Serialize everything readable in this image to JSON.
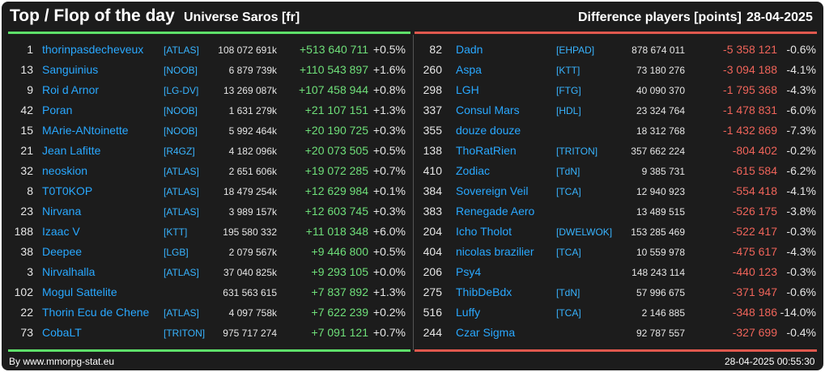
{
  "header": {
    "title": "Top / Flop of the day",
    "universe": "Universe Saros [fr]",
    "difference": "Difference players [points]",
    "date": "28-04-2025"
  },
  "colors": {
    "positive": "#6fe07a",
    "negative": "#f0645a",
    "link": "#29a8ff",
    "background": "#1c1c1c"
  },
  "top": [
    {
      "rank": "1",
      "name": "thorinpasdecheveux",
      "ally": "[ATLAS]",
      "points": "108 072 691k",
      "diff": "+513 640 711",
      "pct": "+0.5%"
    },
    {
      "rank": "13",
      "name": "Sanguinius",
      "ally": "[NOOB]",
      "points": "6 879 739k",
      "diff": "+110 543 897",
      "pct": "+1.6%"
    },
    {
      "rank": "9",
      "name": "Roi d Arnor",
      "ally": "[LG-DV]",
      "points": "13 269 087k",
      "diff": "+107 458 944",
      "pct": "+0.8%"
    },
    {
      "rank": "42",
      "name": "Poran",
      "ally": "[NOOB]",
      "points": "1 631 279k",
      "diff": "+21 107 151",
      "pct": "+1.3%"
    },
    {
      "rank": "15",
      "name": "MArie-ANtoinette",
      "ally": "[NOOB]",
      "points": "5 992 464k",
      "diff": "+20 190 725",
      "pct": "+0.3%"
    },
    {
      "rank": "21",
      "name": "Jean Lafitte",
      "ally": "[R4GZ]",
      "points": "4 182 096k",
      "diff": "+20 073 505",
      "pct": "+0.5%"
    },
    {
      "rank": "32",
      "name": "neoskion",
      "ally": "[ATLAS]",
      "points": "2 651 606k",
      "diff": "+19 072 285",
      "pct": "+0.7%"
    },
    {
      "rank": "8",
      "name": "T0T0KOP",
      "ally": "[ATLAS]",
      "points": "18 479 254k",
      "diff": "+12 629 984",
      "pct": "+0.1%"
    },
    {
      "rank": "23",
      "name": "Nirvana",
      "ally": "[ATLAS]",
      "points": "3 989 157k",
      "diff": "+12 603 745",
      "pct": "+0.3%"
    },
    {
      "rank": "188",
      "name": "Izaac V",
      "ally": "[KTT]",
      "points": "195 580 332",
      "diff": "+11 018 348",
      "pct": "+6.0%"
    },
    {
      "rank": "38",
      "name": "Deepee",
      "ally": "[LGB]",
      "points": "2 079 567k",
      "diff": "+9 446 800",
      "pct": "+0.5%"
    },
    {
      "rank": "3",
      "name": "Nirvalhalla",
      "ally": "[ATLAS]",
      "points": "37 040 825k",
      "diff": "+9 293 105",
      "pct": "+0.0%"
    },
    {
      "rank": "102",
      "name": "Mogul Sattelite",
      "ally": "",
      "points": "631 563 615",
      "diff": "+7 837 892",
      "pct": "+1.3%"
    },
    {
      "rank": "22",
      "name": "Thorin Ecu de Chene",
      "ally": "[ATLAS]",
      "points": "4 097 758k",
      "diff": "+7 622 239",
      "pct": "+0.2%"
    },
    {
      "rank": "73",
      "name": "CobaLT",
      "ally": "[TRITON]",
      "points": "975 717 274",
      "diff": "+7 091 121",
      "pct": "+0.7%"
    }
  ],
  "flop": [
    {
      "rank": "82",
      "name": "Dadn",
      "ally": "[EHPAD]",
      "points": "878 674 011",
      "diff": "-5 358 121",
      "pct": "-0.6%"
    },
    {
      "rank": "260",
      "name": "Aspa",
      "ally": "[KTT]",
      "points": "73 180 276",
      "diff": "-3 094 188",
      "pct": "-4.1%"
    },
    {
      "rank": "298",
      "name": "LGH",
      "ally": "[FTG]",
      "points": "40 090 370",
      "diff": "-1 795 368",
      "pct": "-4.3%"
    },
    {
      "rank": "337",
      "name": "Consul Mars",
      "ally": "[HDL]",
      "points": "23 324 764",
      "diff": "-1 478 831",
      "pct": "-6.0%"
    },
    {
      "rank": "355",
      "name": "douze douze",
      "ally": "",
      "points": "18 312 768",
      "diff": "-1 432 869",
      "pct": "-7.3%"
    },
    {
      "rank": "138",
      "name": "ThoRatRien",
      "ally": "[TRITON]",
      "points": "357 662 224",
      "diff": "-804 402",
      "pct": "-0.2%"
    },
    {
      "rank": "410",
      "name": "Zodiac",
      "ally": "[TdN]",
      "points": "9 385 731",
      "diff": "-615 584",
      "pct": "-6.2%"
    },
    {
      "rank": "384",
      "name": "Sovereign Veil",
      "ally": "[TCA]",
      "points": "12 940 923",
      "diff": "-554 418",
      "pct": "-4.1%"
    },
    {
      "rank": "383",
      "name": "Renegade Aero",
      "ally": "",
      "points": "13 489 515",
      "diff": "-526 175",
      "pct": "-3.8%"
    },
    {
      "rank": "204",
      "name": "Icho Tholot",
      "ally": "[DWELWOK]",
      "points": "153 285 469",
      "diff": "-522 417",
      "pct": "-0.3%"
    },
    {
      "rank": "404",
      "name": "nicolas brazilier",
      "ally": "[TCA]",
      "points": "10 559 978",
      "diff": "-475 617",
      "pct": "-4.3%"
    },
    {
      "rank": "206",
      "name": "Psy4",
      "ally": "",
      "points": "148 243 114",
      "diff": "-440 123",
      "pct": "-0.3%"
    },
    {
      "rank": "275",
      "name": "ThibDeBdx",
      "ally": "[TdN]",
      "points": "57 996 675",
      "diff": "-371 947",
      "pct": "-0.6%"
    },
    {
      "rank": "516",
      "name": "Luffy",
      "ally": "[TCA]",
      "points": "2 146 885",
      "diff": "-348 186",
      "pct": "-14.0%"
    },
    {
      "rank": "244",
      "name": "Czar Sigma",
      "ally": "",
      "points": "92 787 557",
      "diff": "-327 699",
      "pct": "-0.4%"
    }
  ],
  "footer": {
    "source": "By www.mmorpg-stat.eu",
    "timestamp": "28-04-2025 00:55:30"
  }
}
